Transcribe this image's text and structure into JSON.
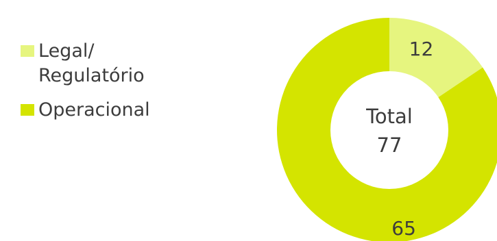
{
  "chart_data": {
    "type": "pie",
    "style": "donut",
    "categories": [
      "Legal/\nRegulatório",
      "Operacional"
    ],
    "values": [
      12,
      65
    ],
    "colors": [
      "#e6f57f",
      "#d4e400"
    ],
    "center_label": "Total",
    "center_value": "77",
    "data_labels": [
      "12",
      "65"
    ],
    "legend_position": "left"
  }
}
